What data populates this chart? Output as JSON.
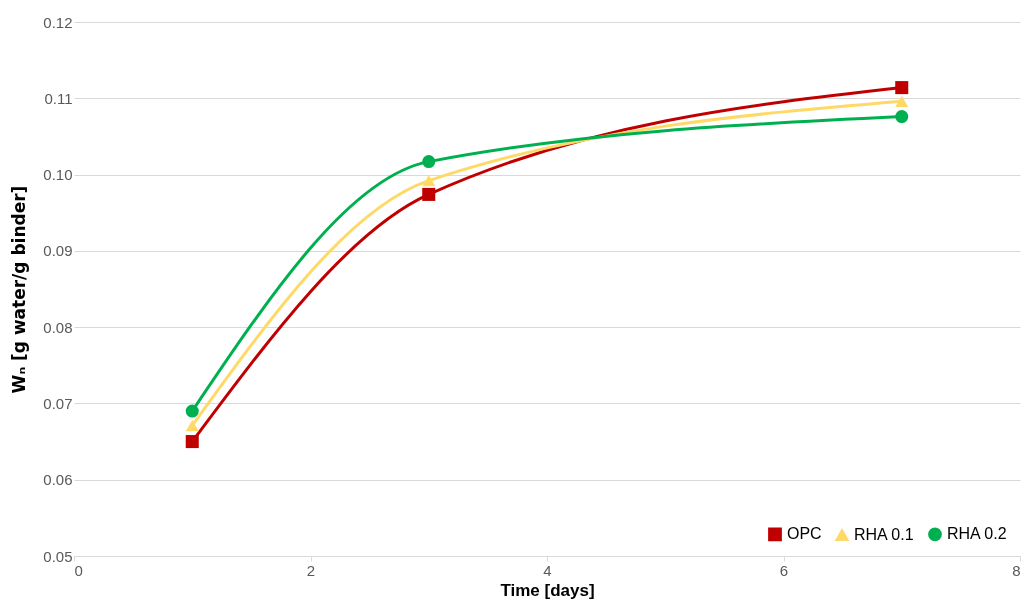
{
  "chart_data": {
    "type": "line",
    "xlabel": "Time [days]",
    "ylabel": "Wₙ [g water/g binder]",
    "xlim": [
      0,
      8
    ],
    "xticks": [
      0,
      2,
      4,
      6,
      8
    ],
    "ylim": [
      0.05,
      0.12
    ],
    "yticks": [
      {
        "value": 0.05,
        "label": "0.05"
      },
      {
        "value": 0.06,
        "label": "0.06"
      },
      {
        "value": 0.07,
        "label": "0.07"
      },
      {
        "value": 0.08,
        "label": "0.08"
      },
      {
        "value": 0.09,
        "label": "0.09"
      },
      {
        "value": 0.1,
        "label": "0.10"
      },
      {
        "value": 0.11,
        "label": "0.11"
      },
      {
        "value": 0.12,
        "label": "0.12"
      }
    ],
    "grid": "y",
    "legend": "bottom right",
    "line_style": "solid",
    "x": [
      1,
      3,
      7
    ],
    "series": [
      {
        "name": "OPC",
        "color": "#c00000",
        "marker": "square",
        "values": [
          0.065,
          0.0974,
          0.1114
        ]
      },
      {
        "name": "RHA 0.1",
        "color": "#ffd966",
        "marker": "triangle",
        "values": [
          0.0671,
          0.0992,
          0.1096
        ]
      },
      {
        "name": "RHA 0.2",
        "color": "#00b050",
        "marker": "circle",
        "values": [
          0.069,
          0.1017,
          0.1076
        ]
      }
    ]
  }
}
